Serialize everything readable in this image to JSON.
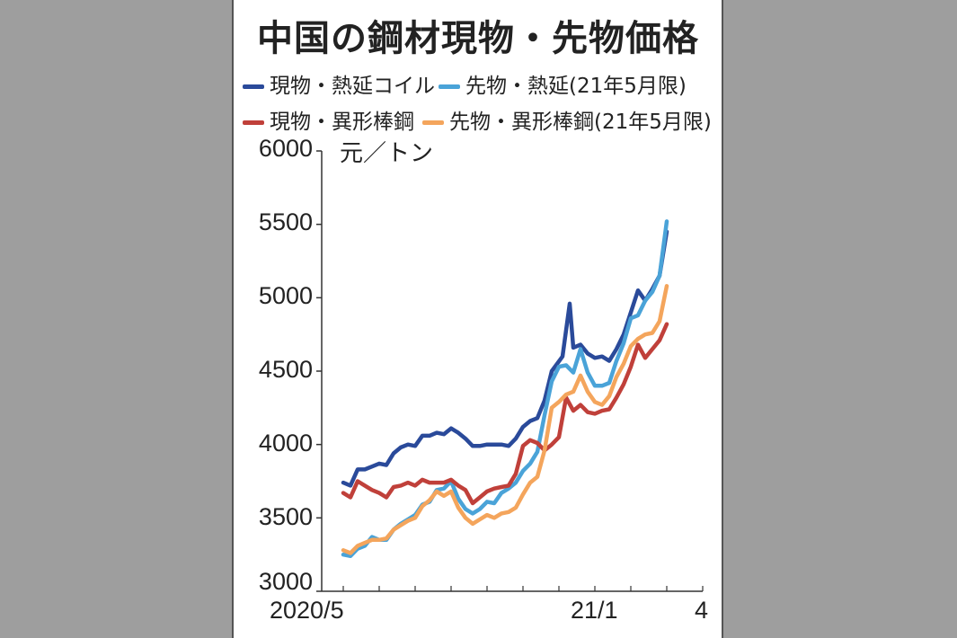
{
  "chart_data": {
    "type": "line",
    "title": "中国の鋼材現物・先物価格",
    "unit_label": "元／トン",
    "yticks": [
      "6000",
      "5500",
      "5000",
      "4500",
      "4000",
      "3500",
      "3000"
    ],
    "ylim": [
      3000,
      6000
    ],
    "x_tick_labels": [
      {
        "label": "2020/5",
        "x": 0
      },
      {
        "label": "21/1",
        "x": 34
      },
      {
        "label": "4",
        "x": 50
      }
    ],
    "x_range": [
      0,
      50
    ],
    "series": [
      {
        "name": "現物・熱延コイル",
        "color": "#2a4a9a",
        "values": [
          3740,
          3720,
          3830,
          3830,
          3850,
          3870,
          3860,
          3940,
          3980,
          4000,
          3990,
          4060,
          4060,
          4080,
          4070,
          4110,
          4080,
          4040,
          3990,
          3990,
          4000,
          4000,
          4000,
          3990,
          4040,
          4120,
          4160,
          4180,
          4300,
          4500,
          4600,
          4960,
          4660,
          4680,
          4620,
          4590,
          4600,
          4570,
          4650,
          4750,
          4900,
          5050,
          4980,
          5060,
          5150,
          5450
        ],
        "x": [
          0,
          1,
          2,
          3,
          4,
          5,
          6,
          7,
          8,
          9,
          10,
          11,
          12,
          13,
          14,
          15,
          16,
          17,
          18,
          19,
          20,
          21,
          22,
          23,
          24,
          25,
          26,
          27,
          28,
          29,
          30.5,
          31.5,
          32,
          33,
          34,
          35,
          36,
          37,
          38,
          39,
          40,
          41,
          42,
          43,
          44,
          45
        ]
      },
      {
        "name": "先物・熱延(21年5月限)",
        "color": "#4aa3d8",
        "values": [
          3250,
          3240,
          3290,
          3310,
          3370,
          3350,
          3350,
          3420,
          3460,
          3490,
          3520,
          3590,
          3610,
          3690,
          3700,
          3750,
          3630,
          3560,
          3530,
          3560,
          3610,
          3600,
          3670,
          3700,
          3740,
          3820,
          3870,
          3950,
          4200,
          4430,
          4530,
          4540,
          4490,
          4650,
          4490,
          4400,
          4400,
          4420,
          4570,
          4690,
          4860,
          4880,
          4980,
          5040,
          5150,
          5520
        ],
        "x": [
          0,
          1,
          2,
          3,
          4,
          5,
          6,
          7,
          8,
          9,
          10,
          11,
          12,
          13,
          14,
          15,
          16,
          17,
          18,
          19,
          20,
          21,
          22,
          23,
          24,
          25,
          26,
          27,
          28,
          29,
          30,
          31,
          32,
          33,
          34,
          35,
          36,
          37,
          38,
          39,
          40,
          41,
          42,
          43,
          44,
          45
        ]
      },
      {
        "name": "現物・異形棒鋼",
        "color": "#c0403a",
        "values": [
          3670,
          3640,
          3750,
          3720,
          3690,
          3670,
          3640,
          3710,
          3720,
          3740,
          3720,
          3760,
          3740,
          3740,
          3740,
          3760,
          3720,
          3690,
          3600,
          3640,
          3680,
          3700,
          3710,
          3720,
          3800,
          3990,
          4030,
          4010,
          3960,
          4000,
          4050,
          4320,
          4230,
          4270,
          4220,
          4210,
          4230,
          4240,
          4320,
          4410,
          4530,
          4680,
          4590,
          4650,
          4710,
          4820
        ],
        "x": [
          0,
          1,
          2,
          3,
          4,
          5,
          6,
          7,
          8,
          9,
          10,
          11,
          12,
          13,
          14,
          15,
          16,
          17,
          18,
          19,
          20,
          21,
          22,
          23,
          24,
          25,
          26,
          27,
          28,
          29,
          30,
          31,
          32,
          33,
          34,
          35,
          36,
          37,
          38,
          39,
          40,
          41,
          42,
          43,
          44,
          45
        ]
      },
      {
        "name": "先物・異形棒鋼(21年5月限)",
        "color": "#f4a55c",
        "values": [
          3280,
          3260,
          3310,
          3330,
          3350,
          3350,
          3360,
          3420,
          3450,
          3480,
          3500,
          3580,
          3620,
          3680,
          3650,
          3680,
          3570,
          3500,
          3460,
          3490,
          3520,
          3500,
          3530,
          3540,
          3570,
          3660,
          3740,
          3780,
          3960,
          4250,
          4290,
          4340,
          4360,
          4470,
          4360,
          4290,
          4270,
          4330,
          4460,
          4550,
          4670,
          4720,
          4750,
          4760,
          4840,
          5080
        ],
        "x": [
          0,
          1,
          2,
          3,
          4,
          5,
          6,
          7,
          8,
          9,
          10,
          11,
          12,
          13,
          14,
          15,
          16,
          17,
          18,
          19,
          20,
          21,
          22,
          23,
          24,
          25,
          26,
          27,
          28,
          29,
          30,
          31,
          32,
          33,
          34,
          35,
          36,
          37,
          38,
          39,
          40,
          41,
          42,
          43,
          44,
          45
        ]
      }
    ]
  }
}
